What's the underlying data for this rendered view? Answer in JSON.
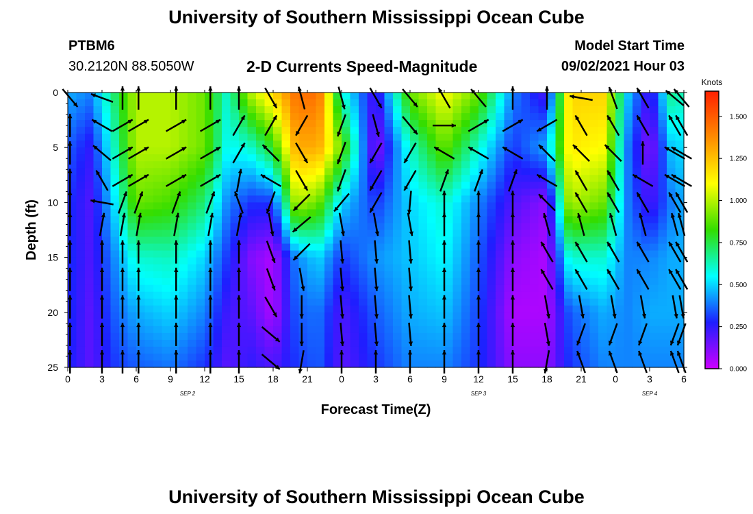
{
  "header": {
    "title": "University of Southern Mississippi Ocean Cube",
    "station_id": "PTBM6",
    "station_coords": "30.2120N  88.5050W",
    "subtitle": "2-D Currents Speed-Magnitude",
    "model_label": "Model Start Time",
    "model_time": "09/02/2021 Hour 03"
  },
  "footer": {
    "title": "University of Southern Mississippi Ocean Cube"
  },
  "chart_data": {
    "type": "heatmap",
    "title": "2-D Currents Speed-Magnitude",
    "xlabel": "Forecast Time(Z)",
    "ylabel": "Depth (ft)",
    "x_hours_from_start": [
      0,
      54
    ],
    "x_tick_labels": [
      "0",
      "3",
      "6",
      "9",
      "12",
      "15",
      "18",
      "21",
      "0",
      "3",
      "6",
      "9",
      "12",
      "15",
      "18",
      "21",
      "0",
      "3",
      "6"
    ],
    "date_labels": [
      {
        "text": "SEP 2",
        "hour": 10.5
      },
      {
        "text": "SEP 3",
        "hour": 36
      },
      {
        "text": "SEP 4",
        "hour": 51
      }
    ],
    "y_range": [
      0,
      25
    ],
    "y_ticks": [
      0,
      5,
      10,
      15,
      20,
      25
    ],
    "colorbar": {
      "unit": "Knots",
      "min": 0,
      "max": 1.65,
      "ticks": [
        "0.000",
        "0.250",
        "0.500",
        "0.750",
        "1.000",
        "1.250",
        "1.500"
      ],
      "colors": [
        "#cc00ff",
        "#1e1eff",
        "#00ffff",
        "#33dd00",
        "#ffff00",
        "#ff8c00",
        "#ff2000"
      ]
    },
    "speed_profiles_knots_by_hour": [
      {
        "hour": 0,
        "depth_ft": [
          0,
          5,
          10,
          15,
          20,
          25
        ],
        "speed": [
          0.45,
          0.35,
          0.3,
          0.3,
          0.3,
          0.28
        ]
      },
      {
        "hour": 2,
        "depth_ft": [
          0,
          5,
          10,
          15,
          20,
          25
        ],
        "speed": [
          0.4,
          0.25,
          0.2,
          0.2,
          0.18,
          0.18
        ]
      },
      {
        "hour": 4,
        "depth_ft": [
          0,
          5,
          10,
          15,
          20,
          25
        ],
        "speed": [
          0.7,
          0.6,
          0.5,
          0.4,
          0.35,
          0.3
        ]
      },
      {
        "hour": 6,
        "depth_ft": [
          0,
          5,
          10,
          15,
          20,
          25
        ],
        "speed": [
          1.0,
          1.0,
          0.9,
          0.6,
          0.45,
          0.35
        ]
      },
      {
        "hour": 9,
        "depth_ft": [
          0,
          5,
          10,
          15,
          20,
          25
        ],
        "speed": [
          1.0,
          1.0,
          0.85,
          0.62,
          0.5,
          0.38
        ]
      },
      {
        "hour": 12,
        "depth_ft": [
          0,
          5,
          10,
          15,
          20,
          25
        ],
        "speed": [
          0.9,
          0.9,
          0.7,
          0.5,
          0.4,
          0.3
        ]
      },
      {
        "hour": 14,
        "depth_ft": [
          0,
          5,
          10,
          15,
          20,
          25
        ],
        "speed": [
          0.6,
          0.55,
          0.4,
          0.3,
          0.22,
          0.18
        ]
      },
      {
        "hour": 16,
        "depth_ft": [
          0,
          5,
          10,
          15,
          20,
          25
        ],
        "speed": [
          1.0,
          0.6,
          0.3,
          0.12,
          0.18,
          0.25
        ]
      },
      {
        "hour": 18,
        "depth_ft": [
          0,
          5,
          10,
          15,
          20,
          25
        ],
        "speed": [
          1.2,
          0.8,
          0.3,
          0.05,
          0.05,
          0.2
        ]
      },
      {
        "hour": 20,
        "depth_ft": [
          0,
          5,
          10,
          15,
          20,
          25
        ],
        "speed": [
          1.45,
          1.3,
          1.0,
          0.4,
          0.35,
          0.3
        ]
      },
      {
        "hour": 22,
        "depth_ft": [
          0,
          5,
          10,
          15,
          20,
          25
        ],
        "speed": [
          1.45,
          1.3,
          0.9,
          0.5,
          0.38,
          0.35
        ]
      },
      {
        "hour": 24,
        "depth_ft": [
          0,
          5,
          10,
          15,
          20,
          25
        ],
        "speed": [
          0.6,
          0.9,
          0.5,
          0.3,
          0.2,
          0.18
        ]
      },
      {
        "hour": 27,
        "depth_ft": [
          0,
          5,
          10,
          15,
          20,
          25
        ],
        "speed": [
          0.2,
          0.1,
          0.3,
          0.42,
          0.35,
          0.3
        ]
      },
      {
        "hour": 30,
        "depth_ft": [
          0,
          5,
          10,
          15,
          20,
          25
        ],
        "speed": [
          0.9,
          0.6,
          0.5,
          0.48,
          0.45,
          0.4
        ]
      },
      {
        "hour": 33,
        "depth_ft": [
          0,
          5,
          10,
          15,
          20,
          25
        ],
        "speed": [
          1.1,
          0.9,
          0.6,
          0.55,
          0.48,
          0.4
        ]
      },
      {
        "hour": 36,
        "depth_ft": [
          0,
          5,
          10,
          15,
          20,
          25
        ],
        "speed": [
          0.9,
          0.6,
          0.4,
          0.35,
          0.32,
          0.3
        ]
      },
      {
        "hour": 39,
        "depth_ft": [
          0,
          5,
          10,
          15,
          20,
          25
        ],
        "speed": [
          0.4,
          0.3,
          0.2,
          0.1,
          0.05,
          0.1
        ]
      },
      {
        "hour": 42,
        "depth_ft": [
          0,
          5,
          10,
          15,
          20,
          25
        ],
        "speed": [
          0.2,
          0.45,
          0.1,
          0.05,
          0.05,
          0.1
        ]
      },
      {
        "hour": 44,
        "depth_ft": [
          0,
          5,
          10,
          15,
          20,
          25
        ],
        "speed": [
          1.2,
          1.15,
          1.0,
          0.6,
          0.35,
          0.3
        ]
      },
      {
        "hour": 47,
        "depth_ft": [
          0,
          5,
          10,
          15,
          20,
          25
        ],
        "speed": [
          1.2,
          1.1,
          0.9,
          0.6,
          0.45,
          0.4
        ]
      },
      {
        "hour": 49,
        "depth_ft": [
          0,
          5,
          10,
          15,
          20,
          25
        ],
        "speed": [
          0.5,
          0.4,
          0.4,
          0.4,
          0.4,
          0.4
        ]
      },
      {
        "hour": 51,
        "depth_ft": [
          0,
          5,
          10,
          15,
          20,
          25
        ],
        "speed": [
          0.2,
          0.1,
          0.2,
          0.4,
          0.45,
          0.4
        ]
      },
      {
        "hour": 53,
        "depth_ft": [
          0,
          5,
          10,
          15,
          20,
          25
        ],
        "speed": [
          0.7,
          0.5,
          0.4,
          0.45,
          0.45,
          0.4
        ]
      },
      {
        "hour": 54,
        "depth_ft": [
          0,
          5,
          10,
          15,
          20,
          25
        ],
        "speed": [
          0.6,
          0.5,
          0.45,
          0.45,
          0.45,
          0.4
        ]
      }
    ],
    "current_vector_rows": [
      {
        "depth_ft": 0.5,
        "dirs_deg": [
          140,
          -70,
          0,
          0,
          0,
          0,
          0,
          150,
          -15,
          165,
          150,
          140,
          -30,
          -40,
          0,
          0,
          -80,
          -20,
          -30,
          -50,
          -40,
          0
        ]
      },
      {
        "depth_ft": 3,
        "dirs_deg": [
          0,
          -60,
          60,
          60,
          60,
          60,
          30,
          30,
          -150,
          -160,
          165,
          140,
          90,
          60,
          60,
          -120,
          -30,
          -30,
          -30,
          -30,
          -30,
          30
        ]
      },
      {
        "depth_ft": 5.5,
        "dirs_deg": [
          0,
          -50,
          60,
          60,
          60,
          60,
          30,
          -45,
          150,
          -160,
          -150,
          -150,
          -60,
          -60,
          -60,
          -45,
          -45,
          -45,
          0,
          -60,
          -60,
          0
        ]
      },
      {
        "depth_ft": 8,
        "dirs_deg": [
          0,
          -30,
          60,
          60,
          60,
          60,
          10,
          -60,
          150,
          -160,
          -150,
          -150,
          20,
          20,
          20,
          -60,
          -30,
          -30,
          -60,
          -60,
          -60,
          0
        ]
      },
      {
        "depth_ft": 10,
        "dirs_deg": [
          0,
          -80,
          20,
          20,
          20,
          20,
          -20,
          -160,
          -135,
          -140,
          -150,
          -175,
          0,
          0,
          0,
          -45,
          -30,
          -30,
          -30,
          -30,
          -30,
          0
        ]
      },
      {
        "depth_ft": 12,
        "dirs_deg": [
          0,
          10,
          10,
          10,
          10,
          10,
          10,
          170,
          -130,
          170,
          170,
          170,
          0,
          0,
          0,
          -15,
          -15,
          -15,
          -15,
          -15,
          -15,
          0
        ]
      },
      {
        "depth_ft": 14.5,
        "dirs_deg": [
          0,
          0,
          0,
          0,
          0,
          0,
          0,
          160,
          -135,
          175,
          175,
          175,
          0,
          0,
          0,
          -30,
          -30,
          -30,
          -30,
          -30,
          -30,
          0
        ]
      },
      {
        "depth_ft": 17,
        "dirs_deg": [
          0,
          0,
          0,
          0,
          0,
          0,
          0,
          160,
          170,
          175,
          175,
          175,
          0,
          0,
          0,
          -30,
          -30,
          -30,
          -30,
          -30,
          -30,
          0
        ]
      },
      {
        "depth_ft": 19.5,
        "dirs_deg": [
          0,
          0,
          0,
          0,
          0,
          0,
          0,
          150,
          180,
          175,
          175,
          175,
          0,
          0,
          0,
          170,
          170,
          170,
          170,
          170,
          170,
          0
        ]
      },
      {
        "depth_ft": 22,
        "dirs_deg": [
          0,
          0,
          0,
          0,
          0,
          0,
          0,
          130,
          180,
          175,
          175,
          175,
          0,
          0,
          0,
          170,
          -160,
          -160,
          -160,
          -160,
          -160,
          0
        ]
      },
      {
        "depth_ft": 24.5,
        "dirs_deg": [
          0,
          0,
          0,
          0,
          0,
          0,
          0,
          130,
          -170,
          0,
          0,
          0,
          0,
          0,
          0,
          -170,
          -20,
          -20,
          -20,
          -20,
          -20,
          0
        ]
      }
    ]
  }
}
